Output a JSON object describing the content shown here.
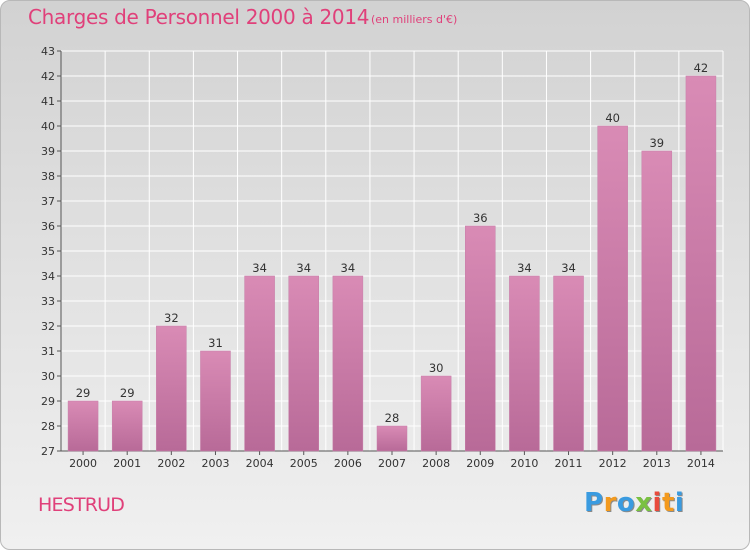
{
  "chart_data": {
    "type": "bar",
    "title": "Charges de Personnel 2000 à 2014",
    "subtitle": "(en milliers d'€)",
    "categories": [
      "2000",
      "2001",
      "2002",
      "2003",
      "2004",
      "2005",
      "2006",
      "2007",
      "2008",
      "2009",
      "2010",
      "2011",
      "2012",
      "2013",
      "2014"
    ],
    "values": [
      29,
      29,
      32,
      31,
      34,
      34,
      34,
      28,
      30,
      36,
      34,
      34,
      40,
      39,
      42
    ],
    "ylim": [
      27,
      43
    ],
    "yticks": [
      27,
      28,
      29,
      30,
      31,
      32,
      33,
      34,
      35,
      36,
      37,
      38,
      39,
      40,
      41,
      42,
      43
    ],
    "grid": true,
    "bar_color": "#d98bb5",
    "bar_color_dark": "#b86a98"
  },
  "footer": {
    "commune": "HESTRUD",
    "logo_letters": [
      "P",
      "r",
      "o",
      "x",
      "i",
      "t",
      "i"
    ],
    "logo_colors": [
      "#3a9be0",
      "#f39a1e",
      "#3a9be0",
      "#7ac142",
      "#e94a3c",
      "#f39a1e",
      "#3a9be0"
    ]
  }
}
